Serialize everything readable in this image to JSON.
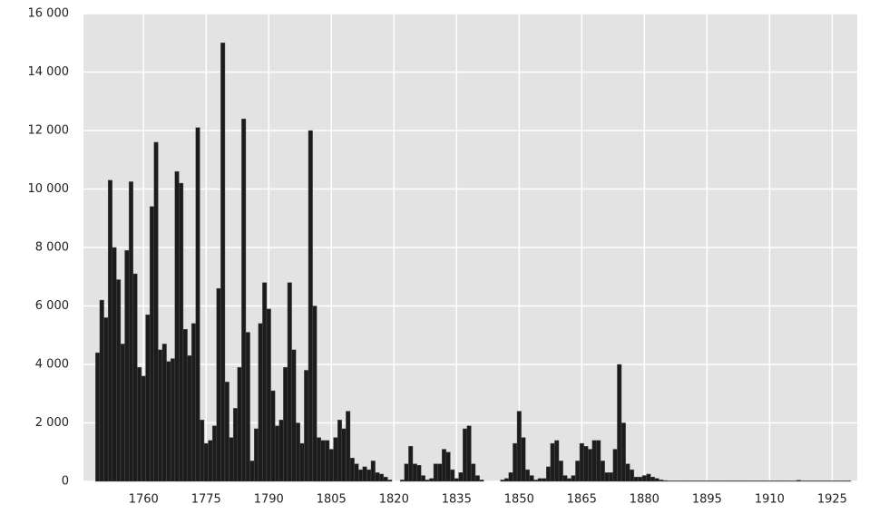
{
  "chart_data": {
    "type": "bar",
    "color": "#1c1c1c",
    "background": "#e3e3e3",
    "grid": true,
    "x": [
      1749,
      1750,
      1751,
      1752,
      1753,
      1754,
      1755,
      1756,
      1757,
      1758,
      1759,
      1760,
      1761,
      1762,
      1763,
      1764,
      1765,
      1766,
      1767,
      1768,
      1769,
      1770,
      1771,
      1772,
      1773,
      1774,
      1775,
      1776,
      1777,
      1778,
      1779,
      1780,
      1781,
      1782,
      1783,
      1784,
      1785,
      1786,
      1787,
      1788,
      1789,
      1790,
      1791,
      1792,
      1793,
      1794,
      1795,
      1796,
      1797,
      1798,
      1799,
      1800,
      1801,
      1802,
      1803,
      1804,
      1805,
      1806,
      1807,
      1808,
      1809,
      1810,
      1811,
      1812,
      1813,
      1814,
      1815,
      1816,
      1817,
      1818,
      1819,
      1820,
      1821,
      1822,
      1823,
      1824,
      1825,
      1826,
      1827,
      1828,
      1829,
      1830,
      1831,
      1832,
      1833,
      1834,
      1835,
      1836,
      1837,
      1838,
      1839,
      1840,
      1841,
      1842,
      1843,
      1844,
      1845,
      1846,
      1847,
      1848,
      1849,
      1850,
      1851,
      1852,
      1853,
      1854,
      1855,
      1856,
      1857,
      1858,
      1859,
      1860,
      1861,
      1862,
      1863,
      1864,
      1865,
      1866,
      1867,
      1868,
      1869,
      1870,
      1871,
      1872,
      1873,
      1874,
      1875,
      1876,
      1877,
      1878,
      1879,
      1880,
      1881,
      1882,
      1883,
      1884,
      1885,
      1886,
      1887,
      1888,
      1889,
      1890,
      1891,
      1892,
      1893,
      1894,
      1895,
      1896,
      1897,
      1898,
      1899,
      1900,
      1901,
      1902,
      1903,
      1904,
      1905,
      1906,
      1907,
      1908,
      1909,
      1910,
      1911,
      1912,
      1913,
      1914,
      1915,
      1916,
      1917,
      1918,
      1919,
      1920,
      1921,
      1922,
      1923,
      1924,
      1925,
      1926,
      1927,
      1928,
      1929
    ],
    "values": [
      4400,
      6200,
      5600,
      10300,
      8000,
      6900,
      4700,
      7900,
      10250,
      7100,
      3900,
      3600,
      5700,
      9400,
      11600,
      4500,
      4700,
      4100,
      4200,
      10600,
      10200,
      5200,
      4300,
      5400,
      12100,
      2100,
      1300,
      1400,
      1900,
      6600,
      15000,
      3400,
      1500,
      2500,
      3900,
      12400,
      5100,
      700,
      1800,
      5400,
      6800,
      5900,
      3100,
      1900,
      2100,
      3900,
      6800,
      4500,
      2000,
      1300,
      3800,
      12000,
      6000,
      1500,
      1400,
      1400,
      1100,
      1500,
      2100,
      1800,
      2400,
      800,
      600,
      400,
      500,
      400,
      700,
      300,
      250,
      150,
      50,
      0,
      0,
      50,
      600,
      1200,
      600,
      550,
      200,
      50,
      100,
      600,
      600,
      1100,
      1000,
      400,
      100,
      300,
      1800,
      1900,
      600,
      200,
      50,
      0,
      0,
      0,
      0,
      50,
      100,
      300,
      1300,
      2400,
      1500,
      400,
      200,
      50,
      100,
      100,
      500,
      1300,
      1400,
      700,
      200,
      100,
      200,
      700,
      1300,
      1200,
      1100,
      1400,
      1400,
      700,
      300,
      300,
      1100,
      4000,
      2000,
      600,
      400,
      150,
      150,
      200,
      250,
      150,
      100,
      50,
      30,
      20,
      20,
      20,
      20,
      20,
      20,
      20,
      20,
      20,
      20,
      20,
      20,
      20,
      20,
      20,
      20,
      20,
      20,
      20,
      20,
      20,
      20,
      20,
      20,
      20,
      20,
      20,
      20,
      20,
      20,
      20,
      40,
      20,
      20,
      20,
      20,
      20,
      20,
      20,
      20,
      20,
      20,
      20,
      20
    ],
    "xlim": [
      1745.6,
      1931
    ],
    "xticks": [
      1760,
      1775,
      1790,
      1805,
      1820,
      1835,
      1850,
      1865,
      1880,
      1895,
      1910,
      1925
    ],
    "ylim": [
      0,
      16000
    ],
    "yticks": [
      0,
      {
        "value": 2000,
        "label": "2 000"
      },
      {
        "value": 4000,
        "label": "4 000"
      },
      {
        "value": 6000,
        "label": "6 000"
      },
      {
        "value": 8000,
        "label": "8 000"
      },
      {
        "value": 10000,
        "label": "10 000"
      },
      {
        "value": 12000,
        "label": "12 000"
      },
      {
        "value": 14000,
        "label": "14 000"
      },
      {
        "value": 16000,
        "label": "16 000"
      }
    ]
  }
}
